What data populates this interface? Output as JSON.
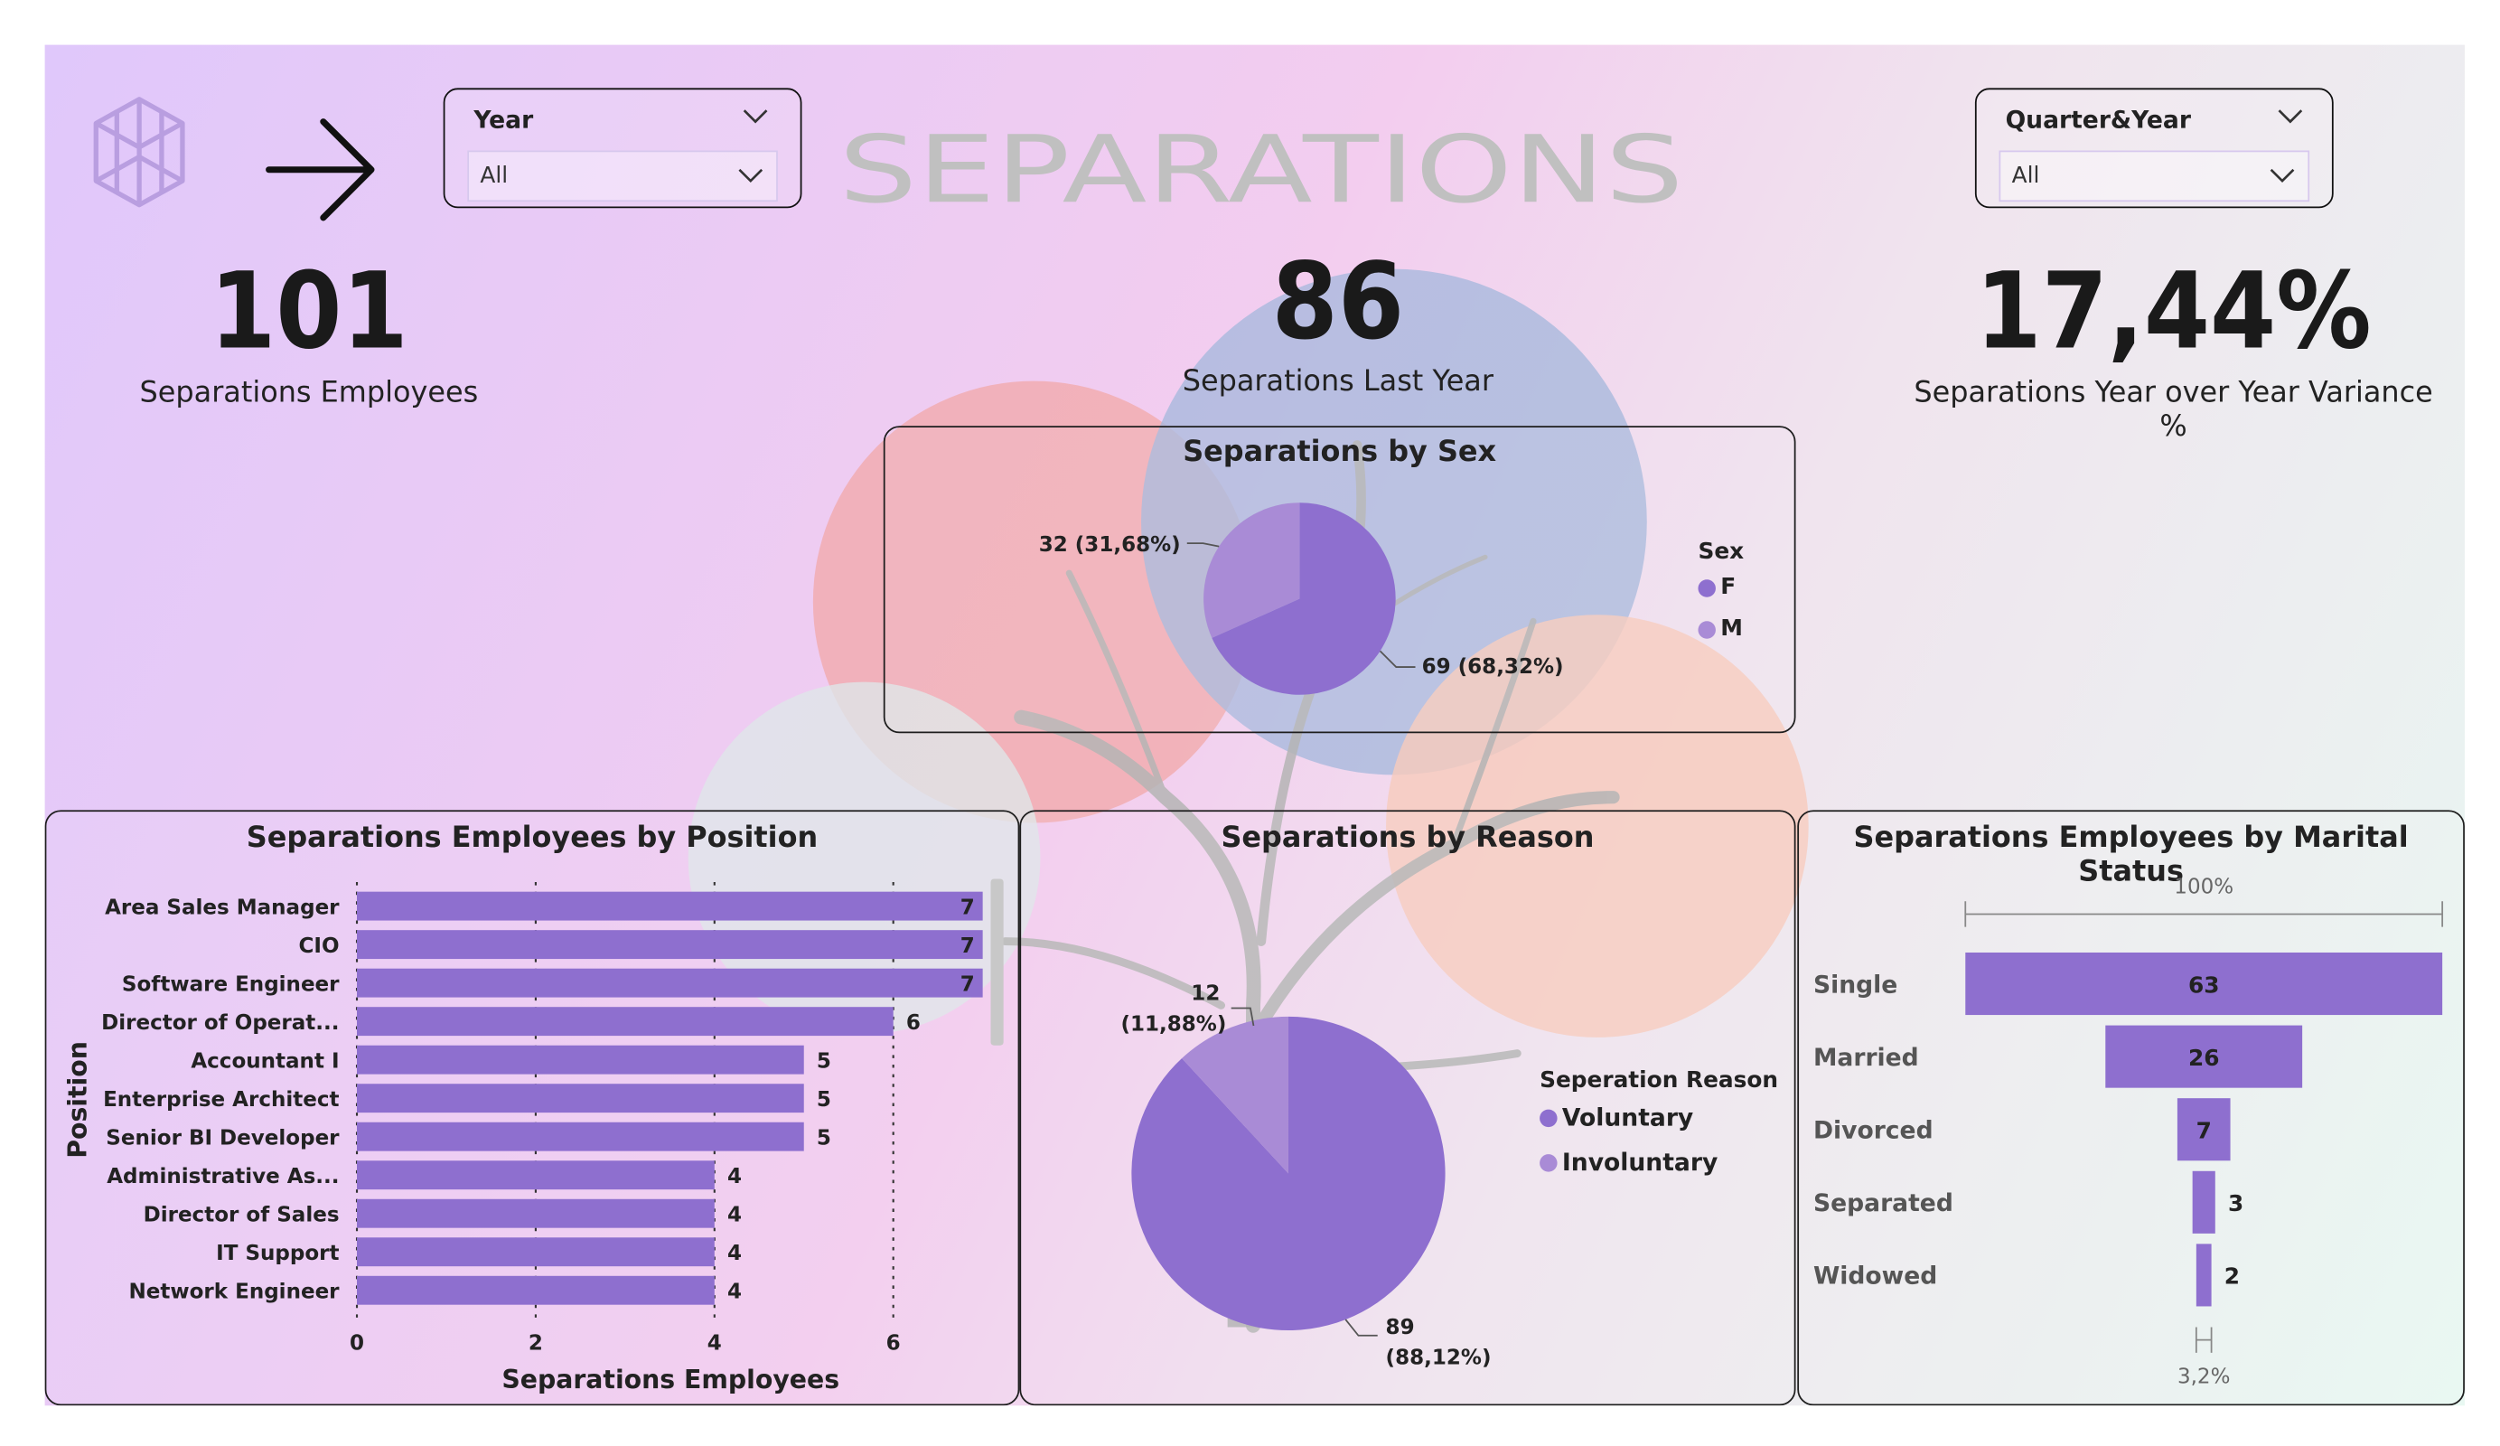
{
  "header": {
    "title": "SEPARATIONS",
    "brain_icon": "brain-icon",
    "arrow_icon": "arrow-right-icon"
  },
  "slicers": {
    "year": {
      "label": "Year",
      "value": "All"
    },
    "quarter_year": {
      "label": "Quarter&Year",
      "value": "All"
    }
  },
  "kpis": {
    "employees": {
      "value": "101",
      "label": "Separations Employees"
    },
    "last_year": {
      "value": "86",
      "label": "Separations Last Year"
    },
    "variance": {
      "value": "17,44%",
      "label": "Separations Year over Year Variance %"
    }
  },
  "colors": {
    "primary": "#8e6fcf",
    "light": "#a98bd6",
    "text": "#222222"
  },
  "chart_data": [
    {
      "type": "pie",
      "title": "Separations by Sex",
      "legend_title": "Sex",
      "categories": [
        "F",
        "M"
      ],
      "values": [
        69,
        32
      ],
      "labels": [
        "69 (68,32%)",
        "32 (31,68%)"
      ],
      "colors": [
        "#8e6fcf",
        "#a98bd6"
      ]
    },
    {
      "type": "bar",
      "orientation": "horizontal",
      "title": "Separations Employees by Position",
      "xlabel": "Separations Employees",
      "ylabel": "Position",
      "categories": [
        "Area Sales Manager",
        "CIO",
        "Software Engineer",
        "Director of Operat...",
        "Accountant I",
        "Enterprise Architect",
        "Senior BI Developer",
        "Administrative As...",
        "Director of Sales",
        "IT Support",
        "Network Engineer"
      ],
      "values": [
        7,
        7,
        7,
        6,
        5,
        5,
        5,
        4,
        4,
        4,
        4
      ],
      "xticks": [
        0,
        2,
        4,
        6
      ],
      "xlim": [
        0,
        7
      ]
    },
    {
      "type": "pie",
      "title": "Separations by Reason",
      "legend_title": "Seperation Reason",
      "categories": [
        "Voluntary",
        "Involuntary"
      ],
      "values": [
        89,
        12
      ],
      "label_counts": [
        "89",
        "12"
      ],
      "label_pcts": [
        "(88,12%)",
        "(11,88%)"
      ],
      "colors": [
        "#8e6fcf",
        "#a98bd6"
      ]
    },
    {
      "type": "bar",
      "subtype": "funnel",
      "title": "Separations Employees by Marital Status",
      "categories": [
        "Single",
        "Married",
        "Divorced",
        "Separated",
        "Widowed"
      ],
      "values": [
        63,
        26,
        7,
        3,
        2
      ],
      "top_label": "100%",
      "bottom_label": "3,2%"
    }
  ]
}
